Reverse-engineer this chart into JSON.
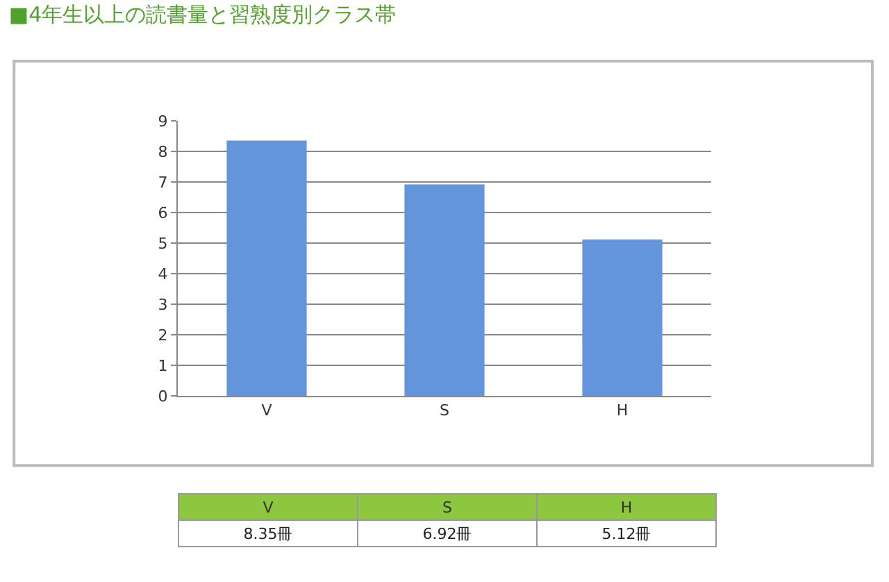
{
  "chart_data": {
    "type": "bar",
    "title": "■4年生以上の読書量と習熟度別クラス帯",
    "categories": [
      "V",
      "S",
      "H"
    ],
    "values": [
      8.35,
      6.92,
      5.12
    ],
    "value_labels": [
      "8.35冊",
      "6.92冊",
      "5.12冊"
    ],
    "color": "#6395dc",
    "ylim": [
      0,
      9
    ],
    "yticks": [
      0,
      1,
      2,
      3,
      4,
      5,
      6,
      7,
      8,
      9
    ],
    "grid": "y"
  }
}
